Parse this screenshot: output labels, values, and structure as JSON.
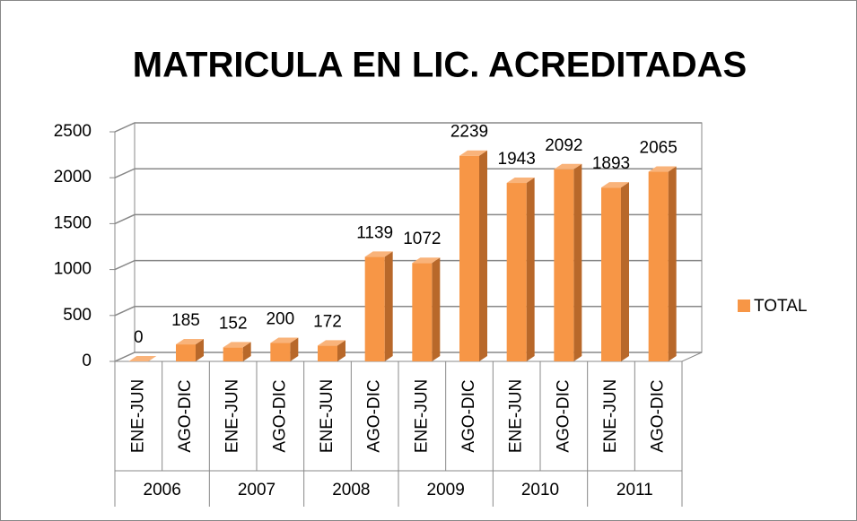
{
  "chart_data": {
    "type": "bar3d",
    "title": "MATRICULA EN LIC. ACREDITADAS",
    "categories": [
      "ENE-JUN",
      "AGO-DIC",
      "ENE-JUN",
      "AGO-DIC",
      "ENE-JUN",
      "AGO-DIC",
      "ENE-JUN",
      "AGO-DIC",
      "ENE-JUN",
      "AGO-DIC",
      "ENE-JUN",
      "AGO-DIC"
    ],
    "groups": [
      "2006",
      "2007",
      "2008",
      "2009",
      "2010",
      "2011"
    ],
    "series": [
      {
        "name": "TOTAL",
        "color": "#f79646",
        "values": [
          0,
          185,
          152,
          200,
          172,
          1139,
          1072,
          2239,
          1943,
          2092,
          1893,
          2065
        ]
      }
    ],
    "ylim": [
      0,
      2500
    ],
    "yticks": [
      0,
      500,
      1000,
      1500,
      2000,
      2500
    ],
    "grid": true,
    "legend": "right"
  }
}
